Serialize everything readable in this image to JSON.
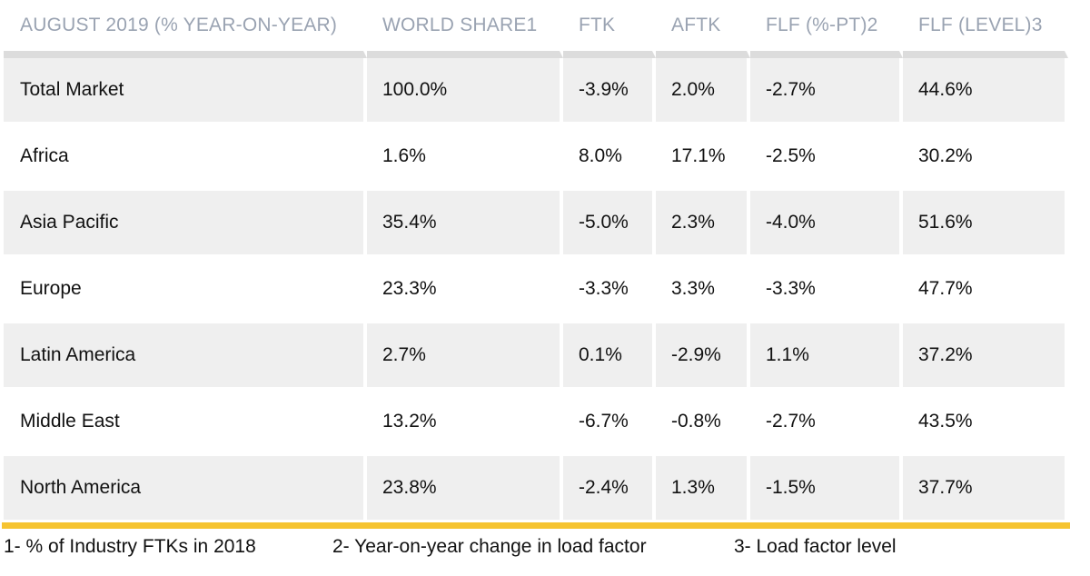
{
  "table": {
    "headers": [
      "AUGUST 2019 (% YEAR-ON-YEAR)",
      "WORLD SHARE1",
      "FTK",
      "AFTK",
      "FLF (%-PT)2",
      "FLF (LEVEL)3"
    ],
    "rows": [
      [
        "Total Market",
        "100.0%",
        "-3.9%",
        "2.0%",
        "-2.7%",
        "44.6%"
      ],
      [
        "Africa",
        "1.6%",
        "8.0%",
        "17.1%",
        "-2.5%",
        "30.2%"
      ],
      [
        "Asia Pacific",
        "35.4%",
        "-5.0%",
        "2.3%",
        "-4.0%",
        "51.6%"
      ],
      [
        "Europe",
        "23.3%",
        "-3.3%",
        "3.3%",
        "-3.3%",
        "47.7%"
      ],
      [
        "Latin America",
        "2.7%",
        "0.1%",
        "-2.9%",
        "1.1%",
        "37.2%"
      ],
      [
        "Middle East",
        "13.2%",
        "-6.7%",
        "-0.8%",
        "-2.7%",
        "43.5%"
      ],
      [
        "North America",
        "23.8%",
        "-2.4%",
        "1.3%",
        "-1.5%",
        "37.7%"
      ]
    ]
  },
  "footnotes": [
    "1- % of Industry FTKs in 2018",
    "2- Year-on-year change in load factor",
    "3- Load factor level"
  ],
  "colors": {
    "header_text": "#9aa3b2",
    "row_shade": "#efefef",
    "accent_rule": "#f6c431"
  }
}
